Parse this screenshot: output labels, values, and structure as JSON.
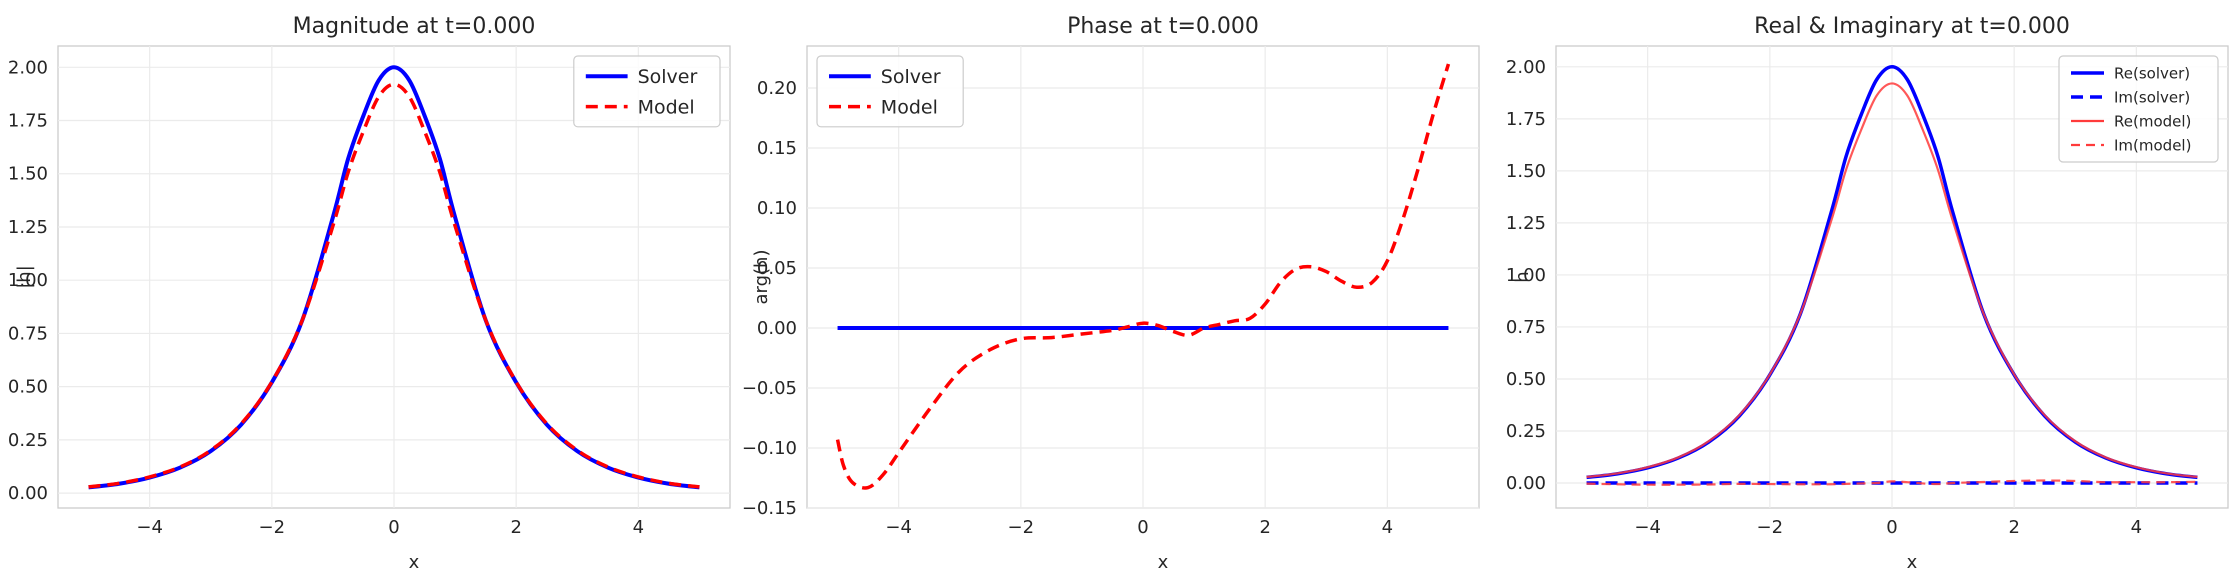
{
  "chart_data": [
    {
      "type": "line",
      "title": "Magnitude at t=0.000",
      "xlabel": "x",
      "ylabel": "|h|",
      "xlim": [
        -5.5,
        5.5
      ],
      "ylim": [
        -0.07,
        2.1
      ],
      "xticks": [
        -4,
        -2,
        0,
        2,
        4
      ],
      "xtick_labels": [
        "−4",
        "−2",
        "0",
        "2",
        "4"
      ],
      "yticks": [
        0,
        0.25,
        0.5,
        0.75,
        1.0,
        1.25,
        1.5,
        1.75,
        2.0
      ],
      "ytick_labels": [
        "0.00",
        "0.25",
        "0.50",
        "0.75",
        "1.00",
        "1.25",
        "1.50",
        "1.75",
        "2.00"
      ],
      "grid": true,
      "legend": "upper right",
      "legend_font": 19,
      "x": [
        -5,
        -4.5,
        -4,
        -3.5,
        -3,
        -2.5,
        -2,
        -1.5,
        -1,
        -0.75,
        -0.5,
        -0.25,
        0,
        0.25,
        0.5,
        0.75,
        1,
        1.5,
        2,
        2.5,
        3,
        3.5,
        4,
        4.5,
        5
      ],
      "series": [
        {
          "name": "Solver",
          "color": "#0000ff",
          "width": 4,
          "dash": "",
          "values": [
            0.027,
            0.044,
            0.073,
            0.12,
            0.197,
            0.322,
            0.52,
            0.813,
            1.296,
            1.571,
            1.773,
            1.939,
            2.0,
            1.939,
            1.773,
            1.571,
            1.296,
            0.813,
            0.52,
            0.322,
            0.197,
            0.12,
            0.073,
            0.044,
            0.027
          ]
        },
        {
          "name": "Model",
          "color": "#ff0000",
          "width": 3.5,
          "dash": "12 7",
          "values": [
            0.029,
            0.046,
            0.076,
            0.123,
            0.201,
            0.326,
            0.522,
            0.813,
            1.255,
            1.507,
            1.7,
            1.862,
            1.92,
            1.862,
            1.7,
            1.507,
            1.255,
            0.813,
            0.522,
            0.326,
            0.201,
            0.123,
            0.076,
            0.046,
            0.029
          ]
        }
      ]
    },
    {
      "type": "line",
      "title": "Phase at t=0.000",
      "xlabel": "x",
      "ylabel": "arg(h)",
      "xlim": [
        -5.5,
        5.5
      ],
      "ylim": [
        -0.15,
        0.235
      ],
      "xticks": [
        -4,
        -2,
        0,
        2,
        4
      ],
      "xtick_labels": [
        "−4",
        "−2",
        "0",
        "2",
        "4"
      ],
      "yticks": [
        -0.15,
        -0.1,
        -0.05,
        0,
        0.05,
        0.1,
        0.15,
        0.2
      ],
      "ytick_labels": [
        "−0.15",
        "−0.10",
        "−0.05",
        "0.00",
        "0.05",
        "0.10",
        "0.15",
        "0.20"
      ],
      "grid": true,
      "legend": "upper left",
      "legend_font": 19,
      "series": [
        {
          "name": "Solver",
          "color": "#0000ff",
          "width": 4,
          "dash": "",
          "x": [
            -5,
            5
          ],
          "values": [
            0,
            0
          ]
        },
        {
          "name": "Model",
          "color": "#ff0000",
          "width": 3.5,
          "dash": "12 7",
          "x": [
            -5,
            -4.9,
            -4.75,
            -4.5,
            -4.25,
            -4,
            -3.5,
            -3,
            -2.5,
            -2,
            -1.5,
            -1,
            -0.5,
            -0.25,
            0,
            0.25,
            0.5,
            0.75,
            1,
            1.25,
            1.5,
            1.75,
            2,
            2.25,
            2.5,
            2.75,
            3,
            3.25,
            3.5,
            3.75,
            4,
            4.25,
            4.5,
            4.75,
            5
          ],
          "values": [
            -0.093,
            -0.115,
            -0.129,
            -0.133,
            -0.122,
            -0.104,
            -0.068,
            -0.036,
            -0.018,
            -0.009,
            -0.008,
            -0.005,
            -0.002,
            0.001,
            0.004,
            0.002,
            -0.003,
            -0.006,
            0.0,
            0.003,
            0.006,
            0.008,
            0.02,
            0.038,
            0.049,
            0.051,
            0.047,
            0.039,
            0.034,
            0.038,
            0.056,
            0.09,
            0.132,
            0.178,
            0.22
          ]
        }
      ]
    },
    {
      "type": "line",
      "title": "Real & Imaginary at t=0.000",
      "xlabel": "x",
      "ylabel": "h",
      "xlim": [
        -5.5,
        5.5
      ],
      "ylim": [
        -0.12,
        2.1
      ],
      "xticks": [
        -4,
        -2,
        0,
        2,
        4
      ],
      "xtick_labels": [
        "−4",
        "−2",
        "0",
        "2",
        "4"
      ],
      "yticks": [
        0,
        0.25,
        0.5,
        0.75,
        1.0,
        1.25,
        1.5,
        1.75,
        2.0
      ],
      "ytick_labels": [
        "0.00",
        "0.25",
        "0.50",
        "0.75",
        "1.00",
        "1.25",
        "1.50",
        "1.75",
        "2.00"
      ],
      "grid": true,
      "legend": "upper right",
      "legend_font": 15,
      "x": [
        -5,
        -4.5,
        -4,
        -3.5,
        -3,
        -2.5,
        -2,
        -1.5,
        -1,
        -0.75,
        -0.5,
        -0.25,
        0,
        0.25,
        0.5,
        0.75,
        1,
        1.5,
        2,
        2.5,
        3,
        3.5,
        4,
        4.5,
        5
      ],
      "series": [
        {
          "name": "Re(solver)",
          "color": "#0000ff",
          "width": 3.5,
          "dash": "",
          "values": [
            0.027,
            0.044,
            0.073,
            0.12,
            0.197,
            0.322,
            0.52,
            0.813,
            1.296,
            1.571,
            1.773,
            1.939,
            2.0,
            1.939,
            1.773,
            1.571,
            1.296,
            0.813,
            0.52,
            0.322,
            0.197,
            0.12,
            0.073,
            0.044,
            0.027
          ]
        },
        {
          "name": "Im(solver)",
          "color": "#0000ff",
          "width": 3.5,
          "dash": "12 7",
          "values": [
            0,
            0,
            0,
            0,
            0,
            0,
            0,
            0,
            0,
            0,
            0,
            0,
            0,
            0,
            0,
            0,
            0,
            0,
            0,
            0,
            0,
            0,
            0,
            0,
            0
          ]
        },
        {
          "name": "Re(model)",
          "color": "#ff3b3b",
          "width": 2.2,
          "dash": "",
          "values": [
            0.029,
            0.046,
            0.076,
            0.123,
            0.201,
            0.326,
            0.522,
            0.813,
            1.255,
            1.507,
            1.7,
            1.862,
            1.92,
            1.862,
            1.7,
            1.507,
            1.255,
            0.813,
            0.522,
            0.326,
            0.201,
            0.123,
            0.076,
            0.046,
            0.029
          ]
        },
        {
          "name": "Im(model)",
          "color": "#ff3b3b",
          "width": 2.2,
          "dash": "9 6",
          "values": [
            -0.003,
            -0.006,
            -0.008,
            -0.008,
            -0.007,
            -0.004,
            -0.005,
            -0.006,
            -0.006,
            -0.004,
            -0.002,
            0,
            0.008,
            0.004,
            -0.002,
            -0.005,
            0,
            0.005,
            0.01,
            0.012,
            0.01,
            0.004,
            0.004,
            0.004,
            0.006
          ]
        }
      ]
    }
  ]
}
